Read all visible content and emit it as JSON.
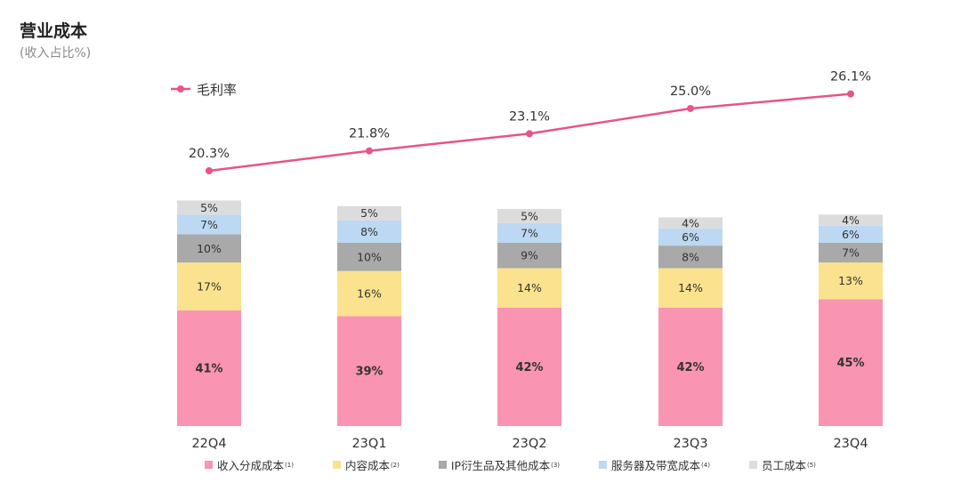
{
  "header": {
    "title": "营业成本",
    "subtitle": "(收入占比%)"
  },
  "chart_data": {
    "type": "bar",
    "stacked": true,
    "title": "营业成本",
    "subtitle": "(收入占比%)",
    "categories": [
      "22Q4",
      "23Q1",
      "23Q2",
      "23Q3",
      "23Q4"
    ],
    "series": [
      {
        "name": "收入分成成本",
        "note": "(1)",
        "color": "#f994b2",
        "values": [
          41,
          39,
          42,
          42,
          45
        ],
        "labels": [
          "41%",
          "39%",
          "42%",
          "42%",
          "45%"
        ]
      },
      {
        "name": "内容成本",
        "note": "(2)",
        "color": "#fbe28e",
        "values": [
          17,
          16,
          14,
          14,
          13
        ],
        "labels": [
          "17%",
          "16%",
          "14%",
          "14%",
          "13%"
        ]
      },
      {
        "name": "IP衍生品及其他成本",
        "note": "(3)",
        "color": "#a9a9a9",
        "values": [
          10,
          10,
          9,
          8,
          7
        ],
        "labels": [
          "10%",
          "10%",
          "9%",
          "8%",
          "7%"
        ]
      },
      {
        "name": "服务器及带宽成本",
        "note": "(4)",
        "color": "#bcd8f2",
        "values": [
          7,
          8,
          7,
          6,
          6
        ],
        "labels": [
          "7%",
          "8%",
          "7%",
          "6%",
          "6%"
        ]
      },
      {
        "name": "员工成本",
        "note": "(5)",
        "color": "#dcdcdc",
        "values": [
          5,
          5,
          5,
          4,
          4
        ],
        "labels": [
          "5%",
          "5%",
          "5%",
          "4%",
          "4%"
        ]
      }
    ],
    "line": {
      "name": "毛利率",
      "color": "#e6548a",
      "values": [
        20.3,
        21.8,
        23.1,
        25.0,
        26.1
      ],
      "labels": [
        "20.3%",
        "21.8%",
        "23.1%",
        "25.0%",
        "26.1%"
      ]
    },
    "legend_position": "bottom",
    "line_legend_position": "top-left"
  }
}
